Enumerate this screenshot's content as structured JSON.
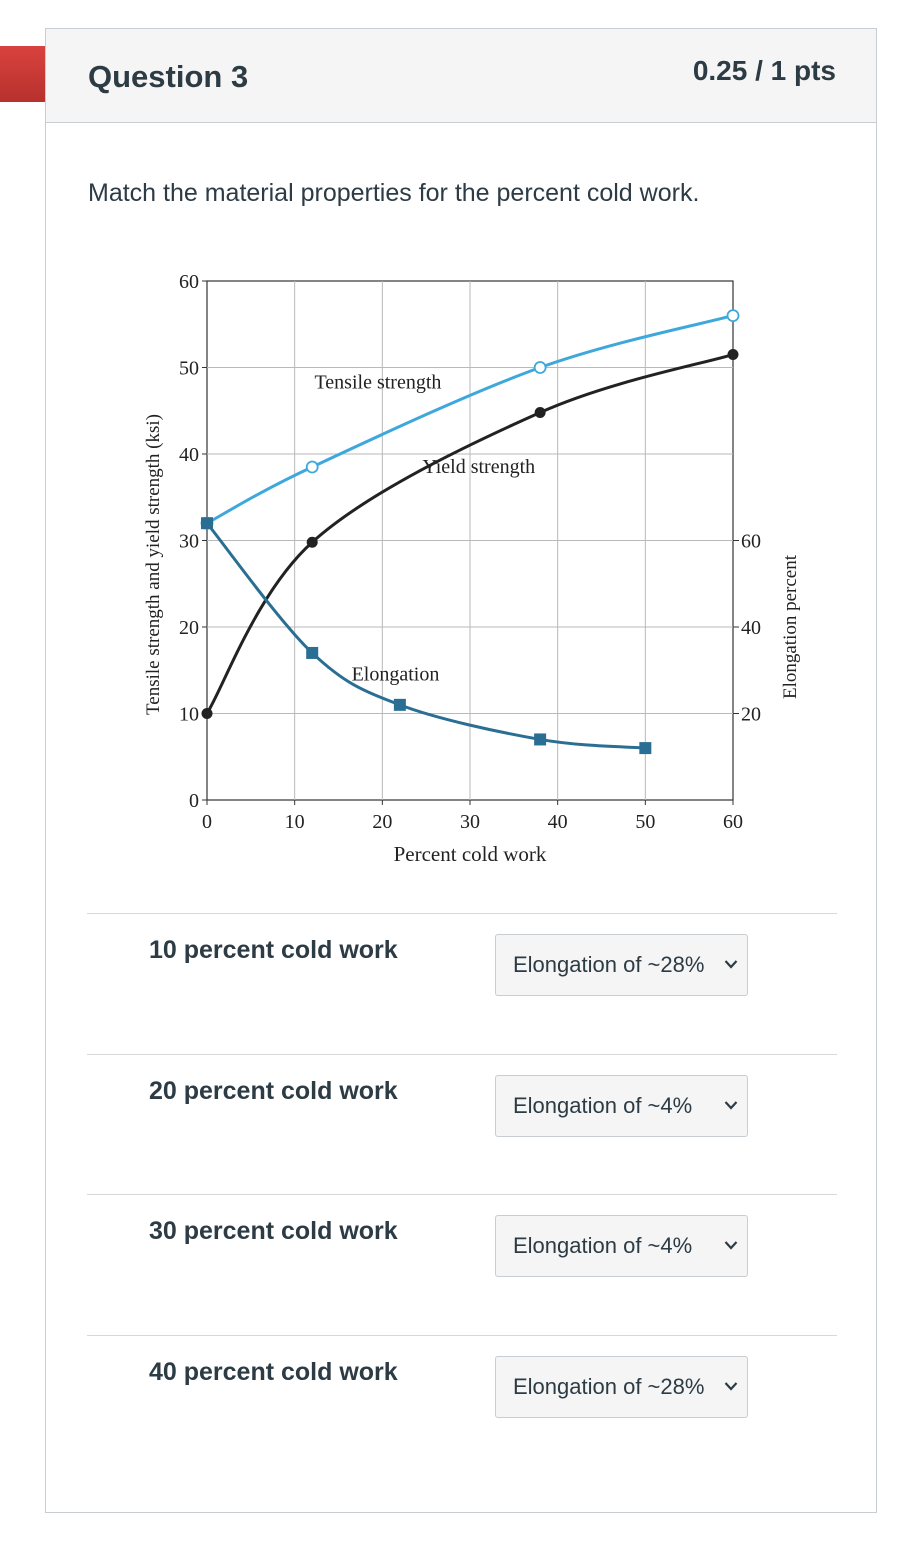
{
  "question": {
    "title": "Question 3",
    "points": "0.25 / 1 pts",
    "prompt": "Match the material properties for the percent cold work."
  },
  "chart_data": {
    "type": "line",
    "xlabel": "Percent cold work",
    "ylabel": "Tensile strength and yield strength (ksi)",
    "y2label": "Elongation percent",
    "xlim": [
      0,
      60
    ],
    "ylim": [
      0,
      60
    ],
    "x_ticks": [
      "0",
      "10",
      "20",
      "30",
      "40",
      "50",
      "60"
    ],
    "y_ticks": [
      "0",
      "10",
      "20",
      "30",
      "40",
      "50",
      "60"
    ],
    "y2_ticks": [
      "20",
      "40",
      "60"
    ],
    "grid": true,
    "series": [
      {
        "name": "Tensile strength",
        "axis": "left",
        "color": "#3ea8dc",
        "marker": "open-circle",
        "x": [
          0,
          12,
          38,
          60
        ],
        "y": [
          32,
          38.5,
          50,
          56
        ]
      },
      {
        "name": "Yield strength",
        "axis": "left",
        "color": "#222222",
        "marker": "filled-circle",
        "x": [
          0,
          12,
          38,
          60
        ],
        "y": [
          10,
          29.8,
          44.8,
          51.5
        ]
      },
      {
        "name": "Elongation",
        "axis": "right",
        "color": "#2a6e93",
        "marker": "filled-square",
        "x": [
          0,
          12,
          22,
          38,
          50
        ],
        "y": [
          64,
          34,
          22,
          14,
          12
        ]
      }
    ]
  },
  "answers": [
    {
      "label": "10 percent cold work",
      "selected": "Elongation of ~28%"
    },
    {
      "label": "20 percent cold work",
      "selected": "Elongation of ~4%"
    },
    {
      "label": "30 percent cold work",
      "selected": "Elongation of ~4%"
    },
    {
      "label": "40 percent cold work",
      "selected": "Elongation of ~28%"
    }
  ],
  "icons": {
    "dropdown": "chevron-down-icon",
    "flag": "question-flag-icon"
  }
}
